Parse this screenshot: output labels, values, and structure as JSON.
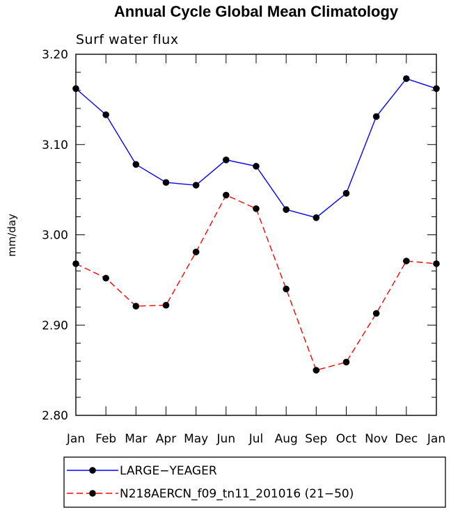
{
  "chart_data": {
    "type": "line",
    "title": "Annual Cycle Global Mean Climatology",
    "subtitle": "Surf water flux",
    "xlabel": "",
    "ylabel": "mm/day",
    "categories": [
      "Jan",
      "Feb",
      "Mar",
      "Apr",
      "May",
      "Jun",
      "Jul",
      "Aug",
      "Sep",
      "Oct",
      "Nov",
      "Dec",
      "Jan"
    ],
    "ylim": [
      2.8,
      3.2
    ],
    "yticks": [
      "2.80",
      "2.90",
      "3.00",
      "3.10",
      "3.20"
    ],
    "legend_position": "bottom",
    "series": [
      {
        "name": "LARGE−YEAGER",
        "color": "#0000ff",
        "line_style": "solid",
        "values": [
          3.162,
          3.133,
          3.078,
          3.058,
          3.055,
          3.083,
          3.076,
          3.028,
          3.019,
          3.046,
          3.131,
          3.173,
          3.162
        ]
      },
      {
        "name": "N218AERCN_f09_tn11_201016 (21−50)",
        "color": "#ff0000",
        "line_style": "dashed",
        "values": [
          2.968,
          2.952,
          2.921,
          2.922,
          2.981,
          3.044,
          3.029,
          2.94,
          2.85,
          2.859,
          2.913,
          2.971,
          2.968
        ]
      }
    ]
  }
}
